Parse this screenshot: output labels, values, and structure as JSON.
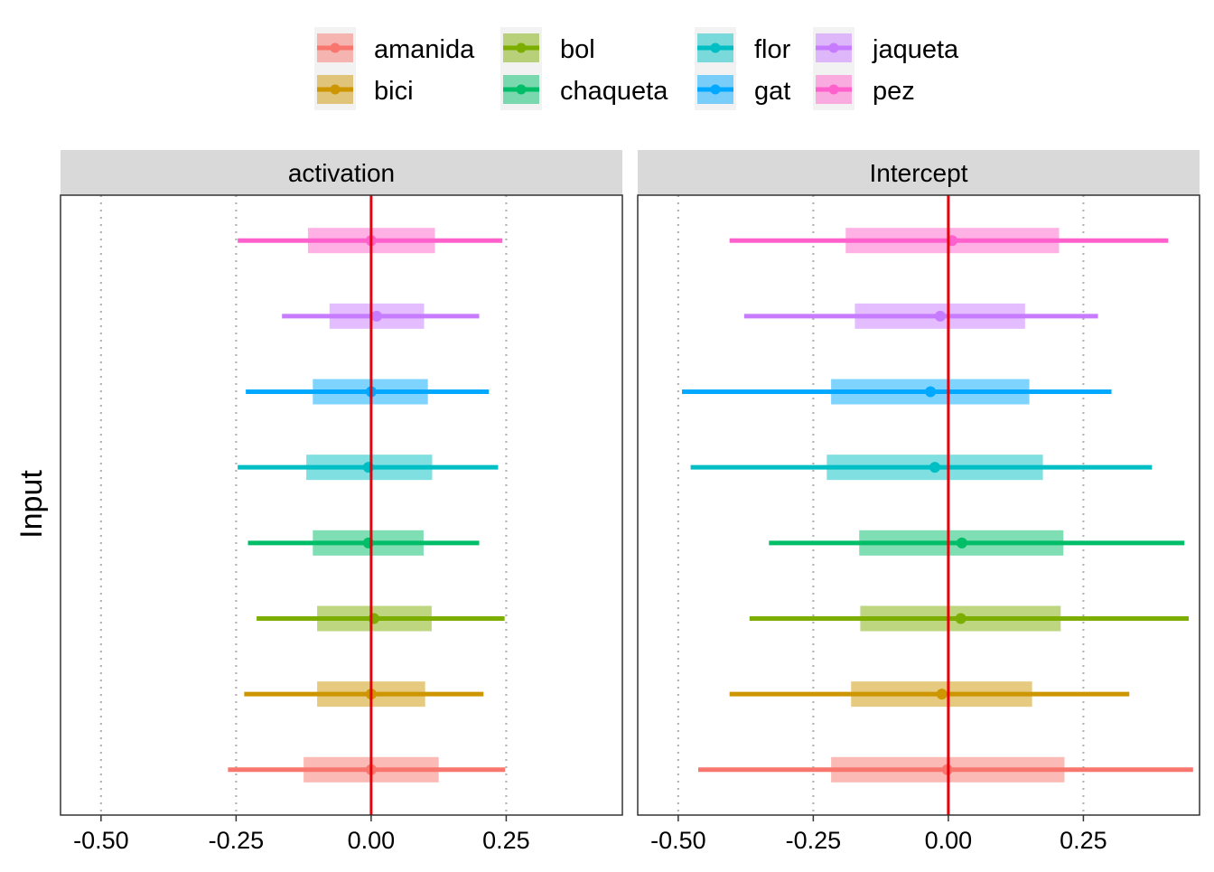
{
  "chart_data": {
    "type": "interval",
    "ylabel": "Input",
    "xlabel": "",
    "facets": [
      "activation",
      "Intercept"
    ],
    "xlim": [
      -0.575,
      0.465
    ],
    "x_ticks": [
      -0.5,
      -0.25,
      0.0,
      0.25
    ],
    "x_tick_labels": [
      "-0.50",
      "-0.25",
      "0.00",
      "0.25"
    ],
    "vertical_grid": [
      -0.5,
      -0.25,
      0.25
    ],
    "zero_line_color": "#e8000b",
    "legend_position": "top",
    "legend_items": [
      {
        "label": "amanida",
        "color": "#f8766d"
      },
      {
        "label": "bici",
        "color": "#cd9600"
      },
      {
        "label": "bol",
        "color": "#7cae00"
      },
      {
        "label": "chaqueta",
        "color": "#00be67"
      },
      {
        "label": "flor",
        "color": "#00bfc4"
      },
      {
        "label": "gat",
        "color": "#00a9ff"
      },
      {
        "label": "jaqueta",
        "color": "#c77cff"
      },
      {
        "label": "pez",
        "color": "#ff61cc"
      }
    ],
    "categories_bottom_to_top": [
      "amanida",
      "bici",
      "bol",
      "chaqueta",
      "flor",
      "gat",
      "jaqueta",
      "pez"
    ],
    "series": [
      {
        "name": "activation",
        "intervals": [
          {
            "category": "amanida",
            "estimate": 0.0,
            "inner": [
              -0.125,
              0.125
            ],
            "outer": [
              -0.265,
              0.248
            ]
          },
          {
            "category": "bici",
            "estimate": 0.0,
            "inner": [
              -0.1,
              0.1
            ],
            "outer": [
              -0.235,
              0.208
            ]
          },
          {
            "category": "bol",
            "estimate": 0.005,
            "inner": [
              -0.1,
              0.112
            ],
            "outer": [
              -0.212,
              0.247
            ]
          },
          {
            "category": "chaqueta",
            "estimate": -0.005,
            "inner": [
              -0.108,
              0.097
            ],
            "outer": [
              -0.228,
              0.2
            ]
          },
          {
            "category": "flor",
            "estimate": -0.005,
            "inner": [
              -0.12,
              0.113
            ],
            "outer": [
              -0.247,
              0.235
            ]
          },
          {
            "category": "gat",
            "estimate": 0.0,
            "inner": [
              -0.108,
              0.105
            ],
            "outer": [
              -0.232,
              0.218
            ]
          },
          {
            "category": "jaqueta",
            "estimate": 0.01,
            "inner": [
              -0.077,
              0.098
            ],
            "outer": [
              -0.165,
              0.2
            ]
          },
          {
            "category": "pez",
            "estimate": 0.0,
            "inner": [
              -0.117,
              0.118
            ],
            "outer": [
              -0.247,
              0.243
            ]
          }
        ]
      },
      {
        "name": "Intercept",
        "intervals": [
          {
            "category": "amanida",
            "estimate": -0.002,
            "inner": [
              -0.217,
              0.215
            ],
            "outer": [
              -0.463,
              0.453
            ]
          },
          {
            "category": "bici",
            "estimate": -0.012,
            "inner": [
              -0.18,
              0.155
            ],
            "outer": [
              -0.405,
              0.335
            ]
          },
          {
            "category": "bol",
            "estimate": 0.023,
            "inner": [
              -0.163,
              0.208
            ],
            "outer": [
              -0.368,
              0.445
            ]
          },
          {
            "category": "chaqueta",
            "estimate": 0.025,
            "inner": [
              -0.165,
              0.213
            ],
            "outer": [
              -0.332,
              0.437
            ]
          },
          {
            "category": "flor",
            "estimate": -0.025,
            "inner": [
              -0.225,
              0.175
            ],
            "outer": [
              -0.477,
              0.377
            ]
          },
          {
            "category": "gat",
            "estimate": -0.033,
            "inner": [
              -0.217,
              0.15
            ],
            "outer": [
              -0.493,
              0.302
            ]
          },
          {
            "category": "jaqueta",
            "estimate": -0.015,
            "inner": [
              -0.173,
              0.142
            ],
            "outer": [
              -0.378,
              0.277
            ]
          },
          {
            "category": "pez",
            "estimate": 0.007,
            "inner": [
              -0.19,
              0.205
            ],
            "outer": [
              -0.405,
              0.407
            ]
          }
        ]
      }
    ]
  }
}
